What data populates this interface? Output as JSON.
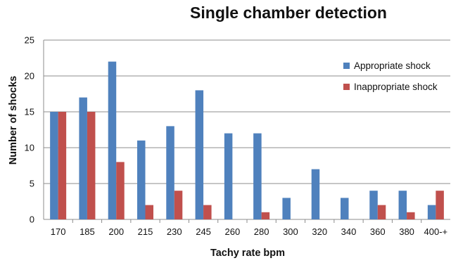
{
  "chart_data": {
    "type": "bar",
    "title": "Single chamber detection",
    "xlabel": "Tachy rate bpm",
    "ylabel": "Number of shocks",
    "categories": [
      "170",
      "185",
      "200",
      "215",
      "230",
      "245",
      "260",
      "280",
      "300",
      "320",
      "340",
      "360",
      "380",
      "400-+"
    ],
    "series": [
      {
        "name": "Appropriate shock",
        "color": "#4f81bd",
        "values": [
          15,
          17,
          22,
          11,
          13,
          18,
          12,
          12,
          3,
          7,
          3,
          4,
          4,
          2
        ]
      },
      {
        "name": "Inappropriate shock",
        "color": "#c0504d",
        "values": [
          15,
          15,
          8,
          2,
          4,
          2,
          0,
          1,
          0,
          0,
          0,
          2,
          1,
          4
        ]
      }
    ],
    "ylim": [
      0,
      25
    ],
    "yticks": [
      0,
      5,
      10,
      15,
      20,
      25
    ],
    "grid": true,
    "legend_position": "right"
  }
}
